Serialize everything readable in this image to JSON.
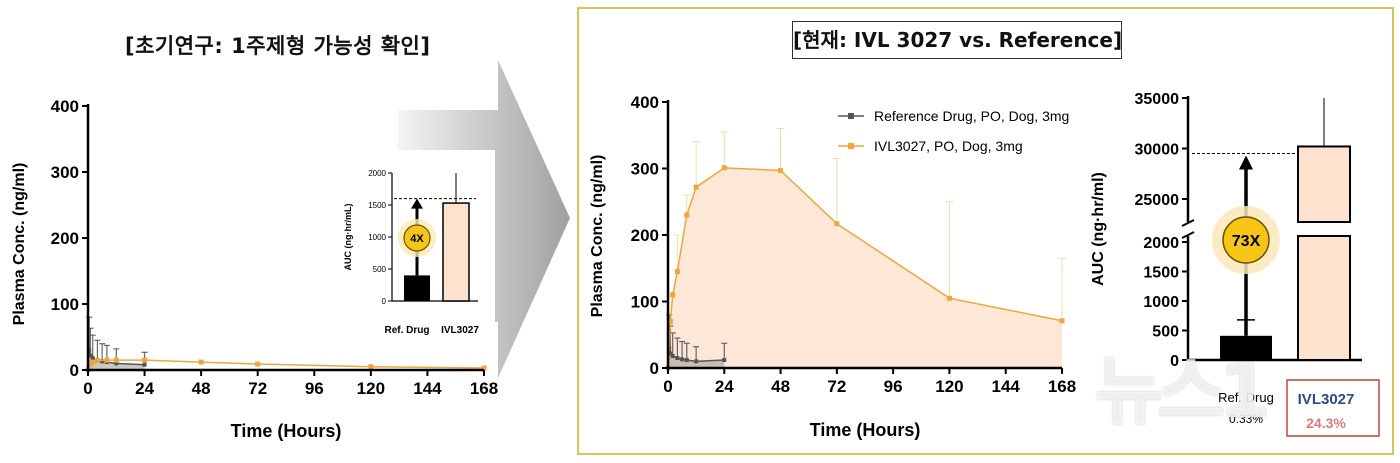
{
  "titles": {
    "left": "[초기연구: 1주제형 가능성 확인]",
    "right": "[현재: IVL 3027 vs. Reference]"
  },
  "colors": {
    "ivl": "#f0a63c",
    "ivl_fill": "#fde3cf",
    "ref": "#555555",
    "frame": "#d9c35c",
    "badge": "#f5c518"
  },
  "watermark": "뉴스1",
  "chart_data": [
    {
      "id": "left-pk",
      "type": "line",
      "xlabel": "Time (Hours)",
      "ylabel": "Plasma Conc. (ng/ml)",
      "xlim": [
        0,
        168
      ],
      "ylim": [
        0,
        400
      ],
      "xticks": [
        0,
        24,
        48,
        72,
        96,
        120,
        144,
        168
      ],
      "yticks": [
        0,
        100,
        200,
        300,
        400
      ],
      "series": [
        {
          "key": "ref",
          "x": [
            0,
            0.5,
            1,
            2,
            4,
            6,
            8,
            12,
            24
          ],
          "y": [
            0,
            30,
            22,
            18,
            15,
            13,
            12,
            10,
            8
          ]
        },
        {
          "key": "ivl",
          "x": [
            0,
            1,
            2,
            4,
            8,
            12,
            24,
            48,
            72,
            120,
            168
          ],
          "y": [
            0,
            8,
            12,
            14,
            15,
            15,
            15,
            12,
            9,
            5,
            3
          ]
        }
      ]
    },
    {
      "id": "left-auc",
      "type": "bar",
      "categories": [
        "Ref. Drug",
        "IVL3027"
      ],
      "values": [
        400,
        1530
      ],
      "ylabel": "AUC (ng·hr/mL)",
      "ylim": [
        0,
        2000
      ],
      "yticks": [
        0,
        500,
        1000,
        1500,
        2000
      ],
      "error": [
        0,
        470
      ],
      "reference_line": 1600,
      "annotation": "4X"
    },
    {
      "id": "right-pk",
      "type": "line",
      "xlabel": "Time (Hours)",
      "ylabel": "Plasma Conc. (ng/ml)",
      "xlim": [
        0,
        168
      ],
      "ylim": [
        0,
        400
      ],
      "xticks": [
        0,
        24,
        48,
        72,
        96,
        120,
        144,
        168
      ],
      "yticks": [
        0,
        100,
        200,
        300,
        400
      ],
      "series": [
        {
          "name": "Reference Drug, PO, Dog, 3mg",
          "key": "ref",
          "x": [
            0,
            0.5,
            1,
            2,
            4,
            6,
            8,
            12,
            24
          ],
          "y": [
            0,
            30,
            22,
            18,
            15,
            13,
            12,
            10,
            12
          ]
        },
        {
          "name": "IVL3027, PO, Dog, 3mg",
          "key": "ivl",
          "x": [
            0,
            1,
            2,
            4,
            8,
            12,
            24,
            48,
            72,
            120,
            168
          ],
          "y": [
            0,
            70,
            110,
            145,
            230,
            272,
            301,
            297,
            217,
            105,
            71
          ]
        }
      ],
      "error_tops": [
        0,
        0,
        0,
        200,
        260,
        340,
        355,
        360,
        315,
        250,
        165
      ]
    },
    {
      "id": "right-auc",
      "type": "bar",
      "categories": [
        "Ref. Drug",
        "IVL3027"
      ],
      "values": [
        410,
        30200
      ],
      "ylabel": "AUC (ng·hr/ml)",
      "yticks_lower": [
        0,
        500,
        1000,
        1500,
        2000
      ],
      "yticks_upper": [
        25000,
        30000,
        35000
      ],
      "error_top": [
        680,
        35000
      ],
      "reference_line": 29500,
      "annotation": "73X",
      "percents": [
        "0.33%",
        "24.3%"
      ]
    }
  ]
}
